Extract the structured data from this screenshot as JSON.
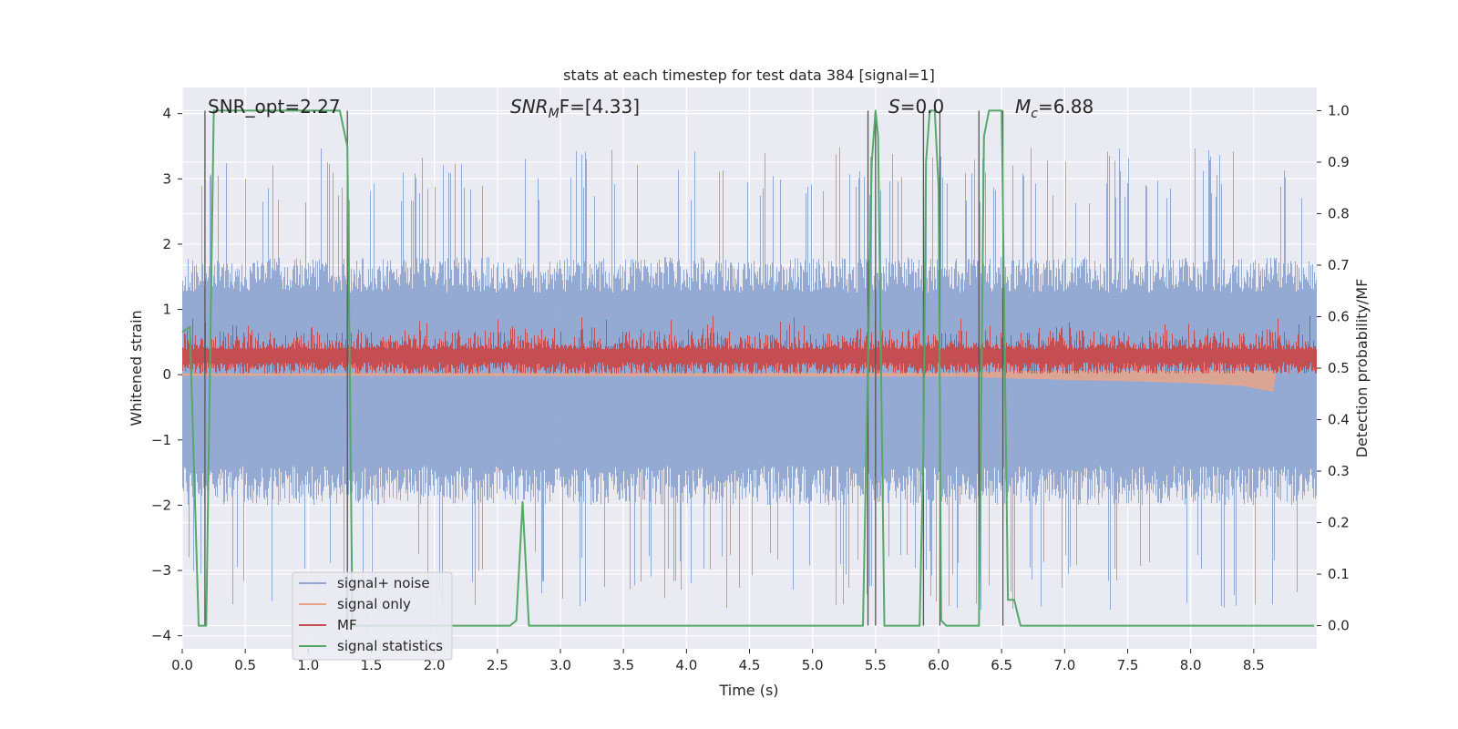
{
  "chart_data": {
    "type": "line",
    "title": "stats at each timestep for test data 384 [signal=1]",
    "xlabel": "Time (s)",
    "ylabel": "Whitened strain",
    "ylabel_right": "Detection probability/MF",
    "xlim": [
      0.0,
      9.0
    ],
    "ylim": [
      -4.2,
      4.4
    ],
    "ylim_right": [
      -0.045,
      1.045
    ],
    "xticks": [
      0.0,
      0.5,
      1.0,
      1.5,
      2.0,
      2.5,
      3.0,
      3.5,
      4.0,
      4.5,
      5.0,
      5.5,
      6.0,
      6.5,
      7.0,
      7.5,
      8.0,
      8.5
    ],
    "xtick_labels": [
      "0.0",
      "0.5",
      "1.0",
      "1.5",
      "2.0",
      "2.5",
      "3.0",
      "3.5",
      "4.0",
      "4.5",
      "5.0",
      "5.5",
      "6.0",
      "6.5",
      "7.0",
      "7.5",
      "8.0",
      "8.5"
    ],
    "yticks": [
      -4,
      -3,
      -2,
      -1,
      0,
      1,
      2,
      3,
      4
    ],
    "ytick_labels": [
      "−4",
      "−3",
      "−2",
      "−1",
      "0",
      "1",
      "2",
      "3",
      "4"
    ],
    "yticks_right": [
      0.0,
      0.1,
      0.2,
      0.3,
      0.4,
      0.5,
      0.6,
      0.7,
      0.8,
      0.9,
      1.0
    ],
    "ytick_labels_right": [
      "0.0",
      "0.1",
      "0.2",
      "0.3",
      "0.4",
      "0.5",
      "0.6",
      "0.7",
      "0.8",
      "0.9",
      "1.0"
    ],
    "grid": true,
    "legend_position": "lower-left",
    "annotations": {
      "snr_opt": "SNR_opt=2.27",
      "snr_mf_main": "SNR",
      "snr_mf_sub": "M",
      "snr_mf_rest": "F=[4.33]",
      "s_main": "S",
      "s_rest": "=0.0",
      "mc_main": "M",
      "mc_sub": "c",
      "mc_rest": "=6.88"
    },
    "series": [
      {
        "name": "signal+ noise",
        "color": "#8fa6d0",
        "axis": "left",
        "envelope_upper_typical": 1.8,
        "envelope_lower_typical": -2.0,
        "envelope_upper_peaks": 3.5,
        "envelope_lower_peaks": -3.6
      },
      {
        "name": "signal only",
        "color": "#e8a58a",
        "axis": "left",
        "x": [
          0.0,
          6.2,
          6.6,
          7.0,
          7.5,
          8.0,
          8.4,
          8.65,
          8.67
        ],
        "y_upper": [
          0.01,
          0.02,
          0.05,
          0.05,
          0.05,
          0.05,
          0.05,
          0.05,
          0.0
        ],
        "y_lower": [
          -0.01,
          -0.02,
          -0.05,
          -0.07,
          -0.09,
          -0.12,
          -0.16,
          -0.25,
          0.0
        ]
      },
      {
        "name": "MF",
        "color": "#c44e52",
        "axis": "left",
        "mean": 0.27,
        "range": [
          0.0,
          0.9
        ]
      },
      {
        "name": "signal statistics",
        "color": "#55a868",
        "axis": "right",
        "x": [
          0.0,
          0.06,
          0.13,
          0.19,
          0.25,
          1.25,
          1.31,
          1.35,
          1.4,
          2.6,
          2.65,
          2.7,
          2.75,
          5.4,
          5.47,
          5.5,
          5.52,
          5.57,
          5.85,
          5.88,
          5.9,
          5.93,
          5.97,
          6.0,
          6.02,
          6.06,
          6.1,
          6.32,
          6.36,
          6.4,
          6.5,
          6.55,
          6.6,
          6.65,
          8.98
        ],
        "y": [
          0.57,
          0.58,
          0.0,
          0.0,
          1.0,
          1.0,
          0.93,
          0.0,
          0.0,
          0.0,
          0.01,
          0.24,
          0.0,
          0.0,
          0.9,
          1.0,
          0.95,
          0.0,
          0.0,
          0.35,
          0.9,
          1.0,
          1.0,
          0.85,
          0.01,
          0.0,
          0.0,
          0.0,
          0.95,
          1.0,
          1.0,
          0.05,
          0.05,
          0.0,
          0.0
        ]
      }
    ],
    "vertical_lines_x": [
      0.18,
      1.31,
      5.44,
      5.5,
      5.88,
      6.01,
      6.32,
      6.51
    ]
  }
}
